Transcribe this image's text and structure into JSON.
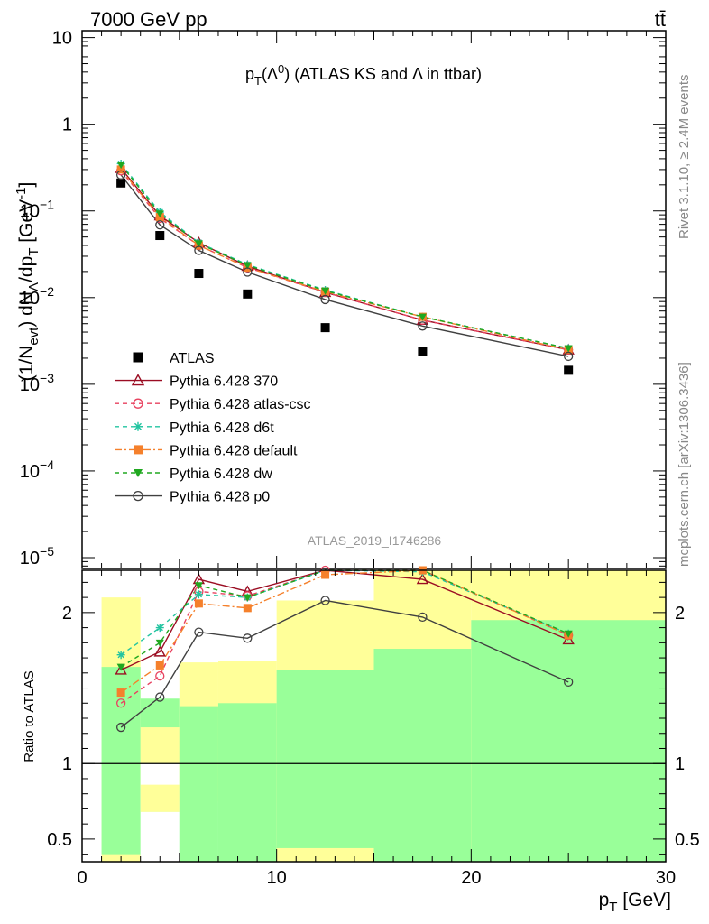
{
  "header": {
    "left": "7000 GeV pp",
    "right": "tt̄"
  },
  "side_labels": {
    "rivet": "Rivet 3.1.10, ≥ 2.4M events",
    "mcplots": "mcplots.cern.ch [arXiv:1306.3436]"
  },
  "analysis_id": "ATLAS_2019_I1746286",
  "colors": {
    "data": "#000000",
    "p370": "#9b0d23",
    "atlascsc": "#e8415f",
    "d6t": "#22c4a0",
    "default": "#f5802b",
    "dw": "#20a820",
    "p0": "#404040",
    "band_inner": "#99ff99",
    "band_outer": "#ffff99"
  },
  "chart_data": [
    {
      "type": "scatter",
      "title": "p_T(Λ⁰) (ATLAS KS and Λ in ttbar)",
      "title_parts": {
        "a": "p",
        "b": "T",
        "c": "(Λ",
        "d": "0",
        "e": ") (ATLAS KS and Λ in ttbar)"
      },
      "ylabel": "(1/N_evt) dN_Λ/dp_T [GeV⁻¹]",
      "ylabel_parts": {
        "a": "(1/N",
        "b": "evt",
        "c": ") dN",
        "d": "Λ",
        "e": "/dp",
        "f": "T",
        "g": " [GeV",
        "h": "-1",
        "i": "]"
      },
      "yscale": "log",
      "xlim": [
        0,
        30
      ],
      "ylim": [
        7.5e-06,
        12
      ],
      "y_ticks": [
        {
          "value": 10,
          "label": "10"
        },
        {
          "value": 1,
          "label": "1"
        },
        {
          "value": 0.1,
          "base": "10",
          "exp": "−1"
        },
        {
          "value": 0.01,
          "base": "10",
          "exp": "−2"
        },
        {
          "value": 0.001,
          "base": "10",
          "exp": "−3"
        },
        {
          "value": 0.0001,
          "base": "10",
          "exp": "−4"
        },
        {
          "value": 1e-05,
          "base": "10",
          "exp": "−5"
        }
      ],
      "legend_position": "lower-left",
      "series": [
        {
          "key": "data",
          "name": "ATLAS",
          "marker": "square",
          "line": "none",
          "x": [
            2,
            4,
            6,
            8.5,
            12.5,
            17.5,
            25
          ],
          "xerr": [
            1,
            1,
            1,
            1.5,
            2.5,
            2.5,
            5
          ],
          "y": [
            0.21,
            0.052,
            0.019,
            0.011,
            0.0045,
            0.0024,
            0.00145
          ]
        },
        {
          "key": "p370",
          "name": "Pythia 6.428 370",
          "marker": "triangle-open",
          "line": "solid",
          "x": [
            2,
            4,
            6,
            8.5,
            12.5,
            17.5,
            25
          ],
          "y": [
            0.31,
            0.088,
            0.043,
            0.023,
            0.0115,
            0.0055,
            0.0025
          ]
        },
        {
          "key": "atlascsc",
          "name": "Pythia 6.428 atlas-csc",
          "marker": "circle-open",
          "line": "dashed",
          "x": [
            2,
            4,
            6,
            8.5,
            12.5,
            17.5,
            25
          ],
          "y": [
            0.29,
            0.082,
            0.04,
            0.0222,
            0.0115,
            0.0055,
            0.0025
          ]
        },
        {
          "key": "d6t",
          "name": "Pythia 6.428 d6t",
          "marker": "star",
          "line": "dashed",
          "x": [
            2,
            4,
            6,
            8.5,
            12.5,
            17.5,
            25
          ],
          "y": [
            0.35,
            0.097,
            0.043,
            0.024,
            0.0122,
            0.006,
            0.0026
          ]
        },
        {
          "key": "default",
          "name": "Pythia 6.428 default",
          "marker": "square-filled",
          "line": "dashdot",
          "x": [
            2,
            4,
            6,
            8.5,
            12.5,
            17.5,
            25
          ],
          "y": [
            0.3,
            0.085,
            0.04,
            0.0222,
            0.0117,
            0.006,
            0.0025
          ]
        },
        {
          "key": "dw",
          "name": "Pythia 6.428 dw",
          "marker": "triangle-down-filled",
          "line": "dashed",
          "x": [
            2,
            4,
            6,
            8.5,
            12.5,
            17.5,
            25
          ],
          "y": [
            0.34,
            0.093,
            0.042,
            0.0236,
            0.012,
            0.006,
            0.0026
          ]
        },
        {
          "key": "p0",
          "name": "Pythia 6.428 p0",
          "marker": "circle-open",
          "line": "solid",
          "x": [
            2,
            4,
            6,
            8.5,
            12.5,
            17.5,
            25
          ],
          "y": [
            0.26,
            0.069,
            0.035,
            0.0197,
            0.0095,
            0.0047,
            0.0021
          ]
        }
      ]
    },
    {
      "type": "line",
      "ylabel": "Ratio to ATLAS",
      "xlabel": "p_T [GeV]",
      "xlabel_parts": {
        "a": "p",
        "b": "T",
        "c": " [GeV]"
      },
      "xlim": [
        0,
        30
      ],
      "ylim": [
        0.35,
        2.28
      ],
      "x_ticks": [
        0,
        10,
        20,
        30
      ],
      "y_ticks": [
        {
          "value": 2,
          "label": "2"
        },
        {
          "value": 1,
          "label": "1"
        },
        {
          "value": 0.5,
          "label": "0.5"
        }
      ],
      "bands": [
        {
          "x0": 1,
          "x1": 3,
          "inner": [
            0.4,
            1.64
          ],
          "outer": [
            0.3,
            2.1
          ]
        },
        {
          "x0": 3,
          "x1": 5,
          "inner": [
            0.0,
            1.43
          ],
          "outer": [
            0.86,
            1.24
          ],
          "inner_lower": [
            0.68,
            1.0
          ],
          "note": "white gap"
        },
        {
          "x0": 5,
          "x1": 7,
          "inner": [
            0.3,
            1.38
          ],
          "outer": [
            0.75,
            1.67
          ]
        },
        {
          "x0": 7,
          "x1": 10,
          "inner": [
            0.3,
            1.4
          ],
          "outer": [
            0.74,
            1.68
          ]
        },
        {
          "x0": 10,
          "x1": 15,
          "inner": [
            0.44,
            1.62
          ],
          "outer": [
            0.3,
            2.08
          ]
        },
        {
          "x0": 15,
          "x1": 20,
          "inner": [
            0.3,
            1.76
          ],
          "outer": [
            0.3,
            2.3
          ]
        },
        {
          "x0": 20,
          "x1": 30,
          "inner": [
            0.3,
            1.95
          ],
          "outer": [
            0.3,
            2.3
          ]
        }
      ],
      "series": [
        {
          "key": "p370",
          "name": "Pythia 6.428 370",
          "x": [
            2,
            4,
            6,
            8.5,
            12.5,
            17.5,
            25
          ],
          "y": [
            1.62,
            1.74,
            2.22,
            2.14,
            2.3,
            2.22,
            1.82
          ]
        },
        {
          "key": "atlascsc",
          "name": "Pythia 6.428 atlas-csc",
          "x": [
            2,
            4,
            6,
            8.5,
            12.5,
            17.5,
            25
          ],
          "y": [
            1.4,
            1.58,
            2.14,
            2.11,
            2.28,
            2.3,
            1.85
          ]
        },
        {
          "key": "d6t",
          "name": "Pythia 6.428 d6t",
          "x": [
            2,
            4,
            6,
            8.5,
            12.5,
            17.5,
            25
          ],
          "y": [
            1.72,
            1.9,
            2.12,
            2.1,
            2.3,
            2.27,
            1.86
          ]
        },
        {
          "key": "default",
          "name": "Pythia 6.428 default",
          "x": [
            2,
            4,
            6,
            8.5,
            12.5,
            17.5,
            25
          ],
          "y": [
            1.47,
            1.65,
            2.06,
            2.03,
            2.25,
            2.28,
            1.85
          ]
        },
        {
          "key": "dw",
          "name": "Pythia 6.428 dw",
          "x": [
            2,
            4,
            6,
            8.5,
            12.5,
            17.5,
            25
          ],
          "y": [
            1.64,
            1.8,
            2.18,
            2.1,
            2.3,
            2.3,
            1.86
          ]
        },
        {
          "key": "p0",
          "name": "Pythia 6.428 p0",
          "x": [
            2,
            4,
            6,
            8.5,
            12.5,
            17.5,
            25
          ],
          "y": [
            1.24,
            1.44,
            1.87,
            1.83,
            2.08,
            1.97,
            1.54
          ]
        }
      ]
    }
  ]
}
